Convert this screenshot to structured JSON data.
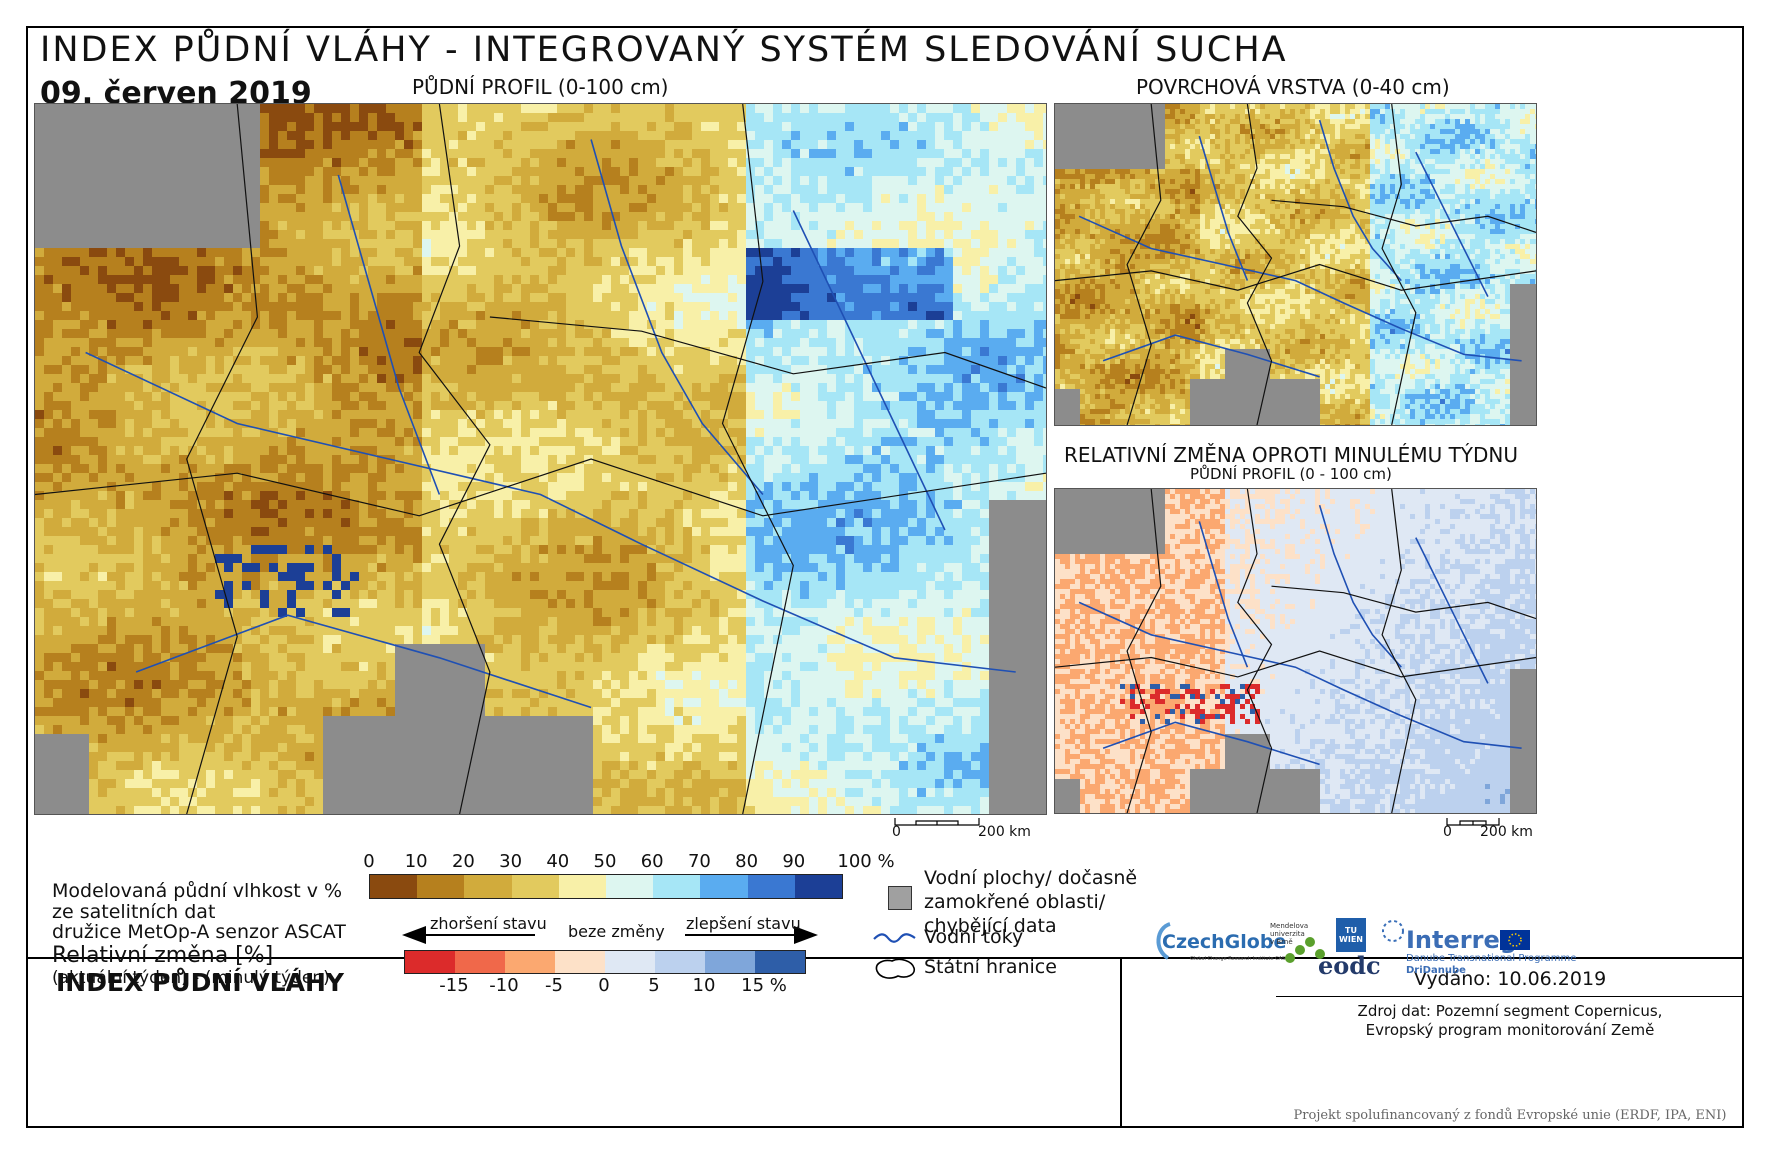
{
  "header": {
    "title": "INDEX PŮDNÍ VLÁHY - INTEGROVANÝ SYSTÉM SLEDOVÁNÍ SUCHA",
    "date": "09. červen 2019"
  },
  "maps": {
    "main_label": "PŮDNÍ PROFIL (0-100 cm)",
    "surface_label": "POVRCHOVÁ VRSTVA (0-40 cm)",
    "change_label": "RELATIVNÍ ZMĚNA OPROTI MINULÉMU TÝDNU",
    "change_sublabel": "PŮDNÍ PROFIL (0 - 100 cm)",
    "scale_zero": "0",
    "scale_main": "200 km",
    "scale_small": "200 km"
  },
  "legend": {
    "title": "INDEX PŮDNÍ VLÁHY",
    "line1": "Modelovaná půdní vlhkost v %",
    "line2": "ze satelitních dat",
    "line3": "družice MetOp-A senzor ASCAT",
    "change_title": "Relativní změna [%]",
    "change_formula": "(aktuální týden) - (minulý týden)",
    "moisture_ticks": [
      "0",
      "10",
      "20",
      "30",
      "40",
      "50",
      "60",
      "70",
      "80",
      "90",
      "100 %"
    ],
    "moisture_colors": [
      "#8a4a0f",
      "#b6801e",
      "#d1ab3c",
      "#e2ca5e",
      "#f8f0a8",
      "#ddf6f0",
      "#a6e6f6",
      "#5aacf0",
      "#3a78d2",
      "#1c3f96"
    ],
    "worse_label": "zhoršení stavu",
    "nochange_label": "beze změny",
    "better_label": "zlepšení stavu",
    "change_ticks": [
      "-15",
      "-10",
      "-5",
      "0",
      "5",
      "10",
      "15 %"
    ],
    "change_colors": [
      "#dc2b2b",
      "#f0684a",
      "#fba870",
      "#fde1c8",
      "#dfe8f4",
      "#bcd1ee",
      "#7fa6da",
      "#2e5ea8"
    ],
    "key_water": "Vodní plochy/ dočasně zamokřené oblasti/ chybějící data",
    "key_water_l1": "Vodní plochy/ dočasně",
    "key_water_l2": "zamokřené oblasti/",
    "key_water_l3": "chybějící data",
    "key_rivers": "Vodní toky",
    "key_borders": "Státní hranice",
    "missing_color": "#a0a0a0",
    "river_color": "#1f50b4"
  },
  "footer": {
    "issued": "Vydáno: 10.06.2019",
    "source_l1": "Zdroj dat: Pozemní segment Copernicus,",
    "source_l2": "Evropský program monitorování Země",
    "logo_czechglobe": "CzechGlobe",
    "logo_czechglobe_sub": "Global Change Research Institute CAS",
    "logo_mendel": "Mendelova univerzita v Brně",
    "logo_tu": "TU WIEN",
    "logo_eodc": "eodc",
    "logo_interreg": "Interreg",
    "logo_interreg_sub1": "Danube Transnational Programme",
    "logo_interreg_sub2": "DriDanube",
    "funding": "Projekt spolufinancovaný z fondů Evropské unie (ERDF, IPA, ENI)"
  }
}
